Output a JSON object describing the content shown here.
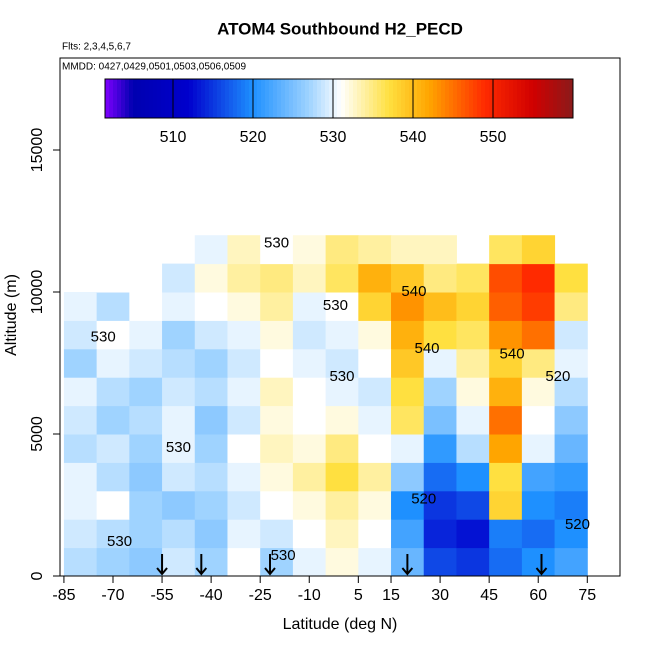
{
  "chart_data": {
    "type": "heatmap",
    "title": "ATOM4 Southbound H2_PECD",
    "subtitle": "Flts: 2,3,4,5,6,7",
    "annotation": "MMDD: 0427,0429,0501,0503,0506,0509",
    "xlabel": "Latitude (deg N)",
    "ylabel": "Altitude (m)",
    "xlim": [
      -86.2,
      85
    ],
    "ylim": [
      0,
      18240
    ],
    "xticks": [
      -85,
      -70,
      -55,
      -40,
      -25,
      -10,
      5,
      15,
      30,
      45,
      60,
      75
    ],
    "yticks": [
      0,
      5000,
      10000,
      15000
    ],
    "x": [
      -80,
      -70,
      -60,
      -50,
      -40,
      -30,
      -20,
      -10,
      0,
      10,
      20,
      30,
      40,
      50,
      60,
      70
    ],
    "y": [
      500,
      1500,
      2500,
      3500,
      4500,
      5500,
      6500,
      7500,
      8500,
      9500,
      10500,
      11500
    ],
    "z": [
      [
        528,
        527,
        526,
        529,
        527,
        531,
        527,
        530,
        532,
        530,
        524,
        516,
        515,
        518,
        520,
        522
      ],
      [
        529,
        528,
        527,
        528,
        526,
        530,
        529,
        531,
        533,
        531,
        522,
        514,
        513,
        519,
        518,
        520
      ],
      [
        530,
        531,
        527,
        526,
        527,
        529,
        531,
        532,
        534,
        532,
        520,
        515,
        516,
        538,
        520,
        519
      ],
      [
        530,
        528,
        526,
        529,
        528,
        530,
        532,
        534,
        537,
        534,
        526,
        518,
        520,
        537,
        522,
        521
      ],
      [
        528,
        529,
        527,
        530,
        527,
        531,
        533,
        532,
        535,
        531,
        530,
        521,
        528,
        542,
        530,
        524
      ],
      [
        529,
        527,
        528,
        530,
        526,
        529,
        532,
        531,
        532,
        530,
        536,
        525,
        530,
        545,
        531,
        526
      ],
      [
        530,
        528,
        527,
        529,
        528,
        530,
        533,
        531,
        530,
        529,
        537,
        527,
        532,
        541,
        532,
        528
      ],
      [
        527,
        530,
        529,
        528,
        527,
        529,
        531,
        530,
        529,
        531,
        539,
        530,
        534,
        538,
        535,
        530
      ],
      [
        529,
        531,
        530,
        527,
        529,
        530,
        532,
        529,
        530,
        532,
        541,
        537,
        536,
        543,
        545,
        529
      ],
      [
        530,
        528,
        531,
        530,
        531,
        532,
        534,
        530,
        531,
        538,
        543,
        540,
        538,
        546,
        548,
        535
      ],
      [
        null,
        531,
        531,
        529,
        532,
        534,
        535,
        533,
        536,
        541,
        539,
        535,
        536,
        547,
        549,
        537
      ],
      [
        null,
        null,
        null,
        null,
        530,
        533,
        531,
        532,
        535,
        534,
        533,
        533,
        null,
        536,
        538,
        null
      ]
    ],
    "colorscale": [
      [
        501.5,
        "#7f00ff"
      ],
      [
        505,
        "#0000b0"
      ],
      [
        512,
        "#0000cd"
      ],
      [
        520,
        "#1e90ff"
      ],
      [
        527,
        "#9fd3ff"
      ],
      [
        531,
        "#ffffff"
      ],
      [
        537,
        "#ffe040"
      ],
      [
        542,
        "#ffa500"
      ],
      [
        549,
        "#ff2a00"
      ],
      [
        555,
        "#d00000"
      ],
      [
        560,
        "#8b1a1a"
      ]
    ],
    "colorbar_lim": [
      501.5,
      560
    ],
    "colorbar_ticks": [
      510,
      520,
      530,
      540,
      550
    ],
    "contour_labels": [
      {
        "text": "530",
        "x": -20,
        "y": 11700
      },
      {
        "text": "530",
        "x": -2,
        "y": 9500
      },
      {
        "text": "530",
        "x": -73,
        "y": 8400
      },
      {
        "text": "530",
        "x": 0,
        "y": 7000
      },
      {
        "text": "530",
        "x": -50,
        "y": 4500
      },
      {
        "text": "530",
        "x": -68,
        "y": 1200
      },
      {
        "text": "530",
        "x": -18,
        "y": 700
      },
      {
        "text": "540",
        "x": 22,
        "y": 10000
      },
      {
        "text": "540",
        "x": 26,
        "y": 8000
      },
      {
        "text": "540",
        "x": 52,
        "y": 7800
      },
      {
        "text": "520",
        "x": 66,
        "y": 7000
      },
      {
        "text": "520",
        "x": 25,
        "y": 2700
      },
      {
        "text": "520",
        "x": 72,
        "y": 1800
      }
    ],
    "flight_markers_x": [
      -55,
      -43,
      -22,
      20,
      61
    ]
  }
}
